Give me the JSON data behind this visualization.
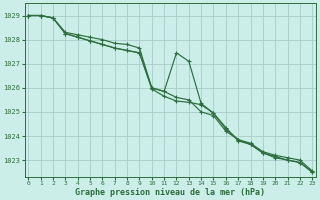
{
  "title": "Graphe pression niveau de la mer (hPa)",
  "background_color": "#cceee8",
  "grid_color": "#aaccc8",
  "line_color": "#2d6e3e",
  "ylim": [
    1022.3,
    1029.5
  ],
  "xlim": [
    -0.3,
    23.3
  ],
  "yticks": [
    1023,
    1024,
    1025,
    1026,
    1027,
    1028,
    1029
  ],
  "xticks": [
    0,
    1,
    2,
    3,
    4,
    5,
    6,
    7,
    8,
    9,
    10,
    11,
    12,
    13,
    14,
    15,
    16,
    17,
    18,
    19,
    20,
    21,
    22,
    23
  ],
  "series1": [
    1029.0,
    1029.0,
    1028.9,
    1028.3,
    1028.2,
    1028.1,
    1028.0,
    1027.85,
    1027.8,
    1027.65,
    1026.0,
    1025.85,
    1025.6,
    1025.5,
    1025.0,
    1024.85,
    1024.2,
    1023.85,
    1023.7,
    1023.35,
    1023.2,
    1023.1,
    1023.0,
    1022.55
  ],
  "series2": [
    1029.0,
    1029.0,
    1028.9,
    1028.25,
    1028.1,
    1027.95,
    1027.8,
    1027.65,
    1027.55,
    1027.45,
    1026.0,
    1025.85,
    1027.45,
    1027.1,
    1025.35,
    1024.95,
    1024.3,
    1023.85,
    1023.65,
    1023.3,
    1023.1,
    1023.0,
    1022.9,
    1022.5
  ],
  "series3": [
    1029.0,
    1029.0,
    1028.9,
    1028.25,
    1028.1,
    1027.95,
    1027.8,
    1027.65,
    1027.55,
    1027.45,
    1025.95,
    1025.65,
    1025.45,
    1025.4,
    1025.3,
    1024.95,
    1024.35,
    1023.8,
    1023.65,
    1023.3,
    1023.15,
    1023.0,
    1022.9,
    1022.5
  ]
}
